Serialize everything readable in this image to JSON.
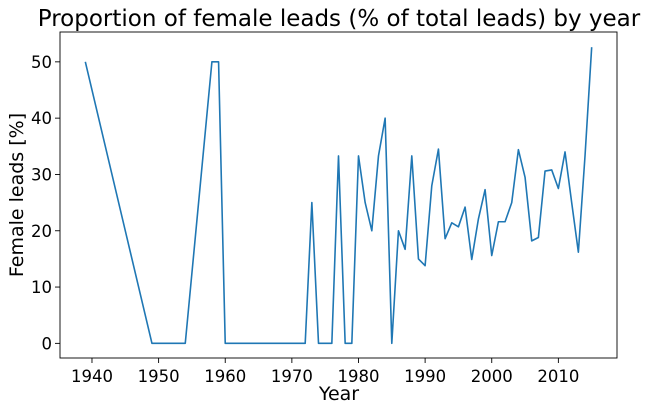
{
  "chart_data": {
    "type": "line",
    "title": "Proportion of female leads (% of total leads) by year",
    "xlabel": "Year",
    "ylabel": "Female leads [%]",
    "xlim": [
      1935.2,
      2018.8
    ],
    "ylim": [
      -2.6,
      55.3
    ],
    "xticks": [
      1940,
      1950,
      1960,
      1970,
      1980,
      1990,
      2000,
      2010
    ],
    "yticks": [
      0,
      10,
      20,
      30,
      40,
      50
    ],
    "grid": false,
    "line_color": "#1f77b4",
    "series": [
      {
        "x": [
          1939,
          1949,
          1950,
          1954,
          1958,
          1959,
          1960,
          1972,
          1973,
          1974,
          1976,
          1977,
          1978,
          1979,
          1980,
          1981,
          1982,
          1983,
          1984,
          1985,
          1986,
          1987,
          1988,
          1989,
          1990,
          1991,
          1992,
          1993,
          1994,
          1995,
          1996,
          1997,
          1998,
          1999,
          2000,
          2001,
          2002,
          2003,
          2004,
          2005,
          2006,
          2007,
          2008,
          2009,
          2010,
          2011,
          2012,
          2013,
          2014,
          2015
        ],
        "y": [
          50,
          0,
          0,
          0,
          50,
          50,
          0,
          0,
          25,
          0,
          0,
          33.3,
          0,
          0,
          33.3,
          25,
          20,
          33.3,
          40,
          0,
          20,
          16.7,
          33.3,
          15,
          13.8,
          28,
          34.5,
          18.6,
          21.4,
          20.7,
          24.2,
          14.9,
          22.1,
          27.3,
          15.6,
          21.6,
          21.6,
          25,
          34.4,
          29.5,
          18.2,
          18.8,
          30.6,
          30.8,
          27.5,
          34,
          25,
          16.2,
          33.3,
          52.6
        ]
      }
    ]
  }
}
